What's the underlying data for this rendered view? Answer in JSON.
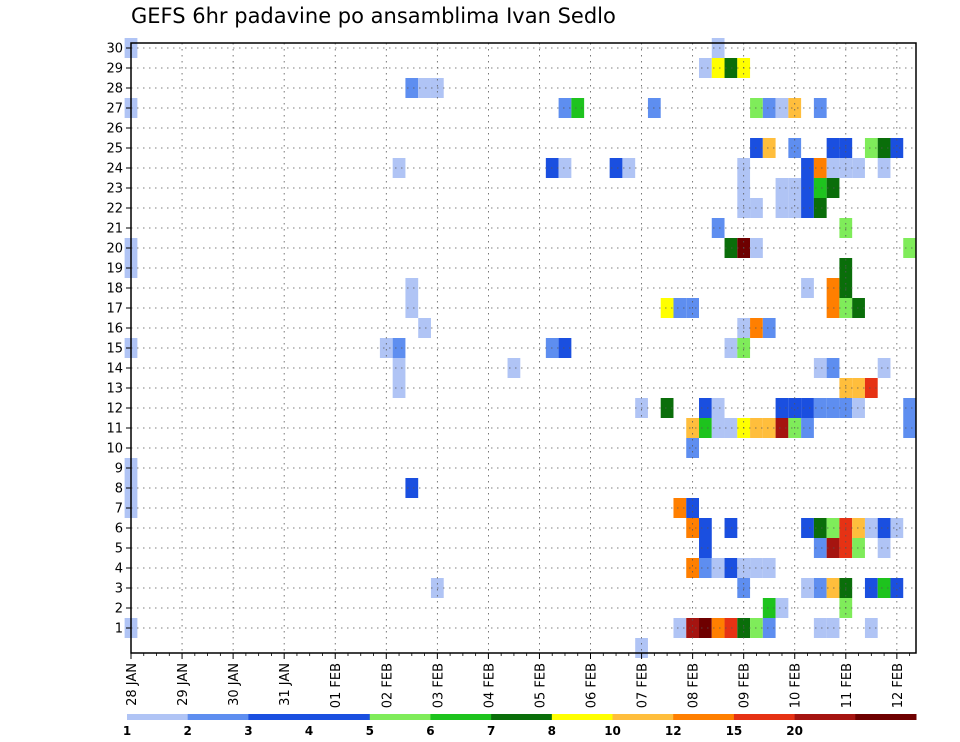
{
  "chart_data": {
    "type": "heatmap",
    "title": "GEFS 6hr padavine po ansamblima Ivan Sedlo",
    "xlabel": "",
    "ylabel": "",
    "x_tick_labels": [
      "28 JAN",
      "29 JAN",
      "30 JAN",
      "31 JAN",
      "01 FEB",
      "02 FEB",
      "03 FEB",
      "04 FEB",
      "05 FEB",
      "06 FEB",
      "07 FEB",
      "08 FEB",
      "09 FEB",
      "10 FEB",
      "11 FEB",
      "12 FEB"
    ],
    "x_range_steps": [
      0,
      61
    ],
    "steps_per_day": 4,
    "y_tick_labels": [
      "1",
      "2",
      "3",
      "4",
      "5",
      "6",
      "7",
      "8",
      "9",
      "10",
      "11",
      "12",
      "13",
      "14",
      "15",
      "16",
      "17",
      "18",
      "19",
      "20",
      "21",
      "22",
      "23",
      "24",
      "25",
      "26",
      "27",
      "28",
      "29",
      "30"
    ],
    "y_range": [
      0,
      30
    ],
    "grid": true,
    "colorbar": {
      "position": "bottom",
      "tick_labels": [
        "1",
        "2",
        "3",
        "4",
        "5",
        "6",
        "7",
        "8",
        "10",
        "12",
        "15",
        "20"
      ],
      "colors": [
        "#b0c4f5",
        "#5e8ef0",
        "#1a4fe0",
        "#1a4fe0",
        "#7fec5a",
        "#1ec31e",
        "#0a6e0a",
        "#ffff00",
        "#ffbe3c",
        "#ff7f00",
        "#e63214",
        "#a51410",
        "#6e0000"
      ]
    },
    "cells_note_units": "x = 6-hour step index from 28 JAN 00Z, y = ensemble member, v = precipitation class index",
    "cells": [
      [
        0,
        30,
        1
      ],
      [
        46,
        30,
        1
      ],
      [
        45,
        29,
        1
      ],
      [
        46,
        29,
        8
      ],
      [
        47,
        29,
        7
      ],
      [
        48,
        29,
        8
      ],
      [
        22,
        28,
        2
      ],
      [
        23,
        28,
        1
      ],
      [
        24,
        28,
        1
      ],
      [
        0,
        27,
        1
      ],
      [
        34,
        27,
        2
      ],
      [
        35,
        27,
        6
      ],
      [
        41,
        27,
        2
      ],
      [
        49,
        27,
        5
      ],
      [
        50,
        27,
        2
      ],
      [
        51,
        27,
        1
      ],
      [
        52,
        27,
        9
      ],
      [
        54,
        27,
        2
      ],
      [
        49,
        25,
        3
      ],
      [
        50,
        25,
        9
      ],
      [
        52,
        25,
        2
      ],
      [
        55,
        25,
        3
      ],
      [
        56,
        25,
        3
      ],
      [
        58,
        25,
        5
      ],
      [
        59,
        25,
        7
      ],
      [
        60,
        25,
        3
      ],
      [
        21,
        24,
        1
      ],
      [
        33,
        24,
        3
      ],
      [
        34,
        24,
        1
      ],
      [
        38,
        24,
        3
      ],
      [
        39,
        24,
        1
      ],
      [
        48,
        24,
        1
      ],
      [
        53,
        24,
        3
      ],
      [
        54,
        24,
        10
      ],
      [
        55,
        24,
        1
      ],
      [
        56,
        24,
        1
      ],
      [
        57,
        24,
        1
      ],
      [
        59,
        24,
        1
      ],
      [
        48,
        23,
        1
      ],
      [
        51,
        23,
        1
      ],
      [
        52,
        23,
        1
      ],
      [
        53,
        23,
        3
      ],
      [
        54,
        23,
        6
      ],
      [
        55,
        23,
        7
      ],
      [
        48,
        22,
        1
      ],
      [
        49,
        22,
        1
      ],
      [
        51,
        22,
        1
      ],
      [
        52,
        22,
        1
      ],
      [
        53,
        22,
        3
      ],
      [
        54,
        22,
        7
      ],
      [
        46,
        21,
        2
      ],
      [
        56,
        21,
        5
      ],
      [
        0,
        20,
        1
      ],
      [
        47,
        20,
        7
      ],
      [
        48,
        20,
        13
      ],
      [
        49,
        20,
        1
      ],
      [
        61,
        20,
        5
      ],
      [
        0,
        19,
        1
      ],
      [
        56,
        19,
        7
      ],
      [
        53,
        18,
        1
      ],
      [
        55,
        18,
        10
      ],
      [
        56,
        18,
        7
      ],
      [
        22,
        18,
        1
      ],
      [
        42,
        17,
        8
      ],
      [
        43,
        17,
        2
      ],
      [
        44,
        17,
        2
      ],
      [
        55,
        17,
        10
      ],
      [
        56,
        17,
        5
      ],
      [
        57,
        17,
        7
      ],
      [
        22,
        17,
        1
      ],
      [
        23,
        16,
        1
      ],
      [
        48,
        16,
        1
      ],
      [
        49,
        16,
        10
      ],
      [
        50,
        16,
        2
      ],
      [
        0,
        15,
        1
      ],
      [
        20,
        15,
        1
      ],
      [
        21,
        15,
        2
      ],
      [
        33,
        15,
        2
      ],
      [
        34,
        15,
        3
      ],
      [
        47,
        15,
        1
      ],
      [
        48,
        15,
        5
      ],
      [
        21,
        14,
        1
      ],
      [
        30,
        14,
        1
      ],
      [
        54,
        14,
        1
      ],
      [
        55,
        14,
        2
      ],
      [
        59,
        14,
        1
      ],
      [
        21,
        13,
        1
      ],
      [
        56,
        13,
        9
      ],
      [
        57,
        13,
        9
      ],
      [
        58,
        13,
        11
      ],
      [
        40,
        12,
        1
      ],
      [
        42,
        12,
        7
      ],
      [
        45,
        12,
        3
      ],
      [
        46,
        12,
        1
      ],
      [
        51,
        12,
        3
      ],
      [
        52,
        12,
        3
      ],
      [
        53,
        12,
        3
      ],
      [
        54,
        12,
        2
      ],
      [
        55,
        12,
        2
      ],
      [
        56,
        12,
        2
      ],
      [
        57,
        12,
        1
      ],
      [
        61,
        12,
        2
      ],
      [
        44,
        11,
        9
      ],
      [
        45,
        11,
        6
      ],
      [
        46,
        11,
        1
      ],
      [
        47,
        11,
        1
      ],
      [
        48,
        11,
        8
      ],
      [
        49,
        11,
        9
      ],
      [
        50,
        11,
        9
      ],
      [
        51,
        11,
        12
      ],
      [
        52,
        11,
        5
      ],
      [
        53,
        11,
        2
      ],
      [
        61,
        11,
        2
      ],
      [
        44,
        10,
        2
      ],
      [
        0,
        9,
        1
      ],
      [
        0,
        8,
        1
      ],
      [
        22,
        8,
        3
      ],
      [
        0,
        7,
        1
      ],
      [
        43,
        7,
        10
      ],
      [
        44,
        7,
        3
      ],
      [
        44,
        6,
        10
      ],
      [
        45,
        6,
        3
      ],
      [
        47,
        6,
        3
      ],
      [
        53,
        6,
        3
      ],
      [
        54,
        6,
        7
      ],
      [
        55,
        6,
        5
      ],
      [
        56,
        6,
        11
      ],
      [
        57,
        6,
        9
      ],
      [
        58,
        6,
        1
      ],
      [
        59,
        6,
        3
      ],
      [
        60,
        6,
        1
      ],
      [
        45,
        5,
        3
      ],
      [
        54,
        5,
        2
      ],
      [
        55,
        5,
        12
      ],
      [
        56,
        5,
        11
      ],
      [
        57,
        5,
        5
      ],
      [
        59,
        5,
        1
      ],
      [
        44,
        4,
        10
      ],
      [
        45,
        4,
        2
      ],
      [
        46,
        4,
        1
      ],
      [
        47,
        4,
        3
      ],
      [
        48,
        4,
        1
      ],
      [
        49,
        4,
        1
      ],
      [
        50,
        4,
        1
      ],
      [
        24,
        3,
        1
      ],
      [
        48,
        3,
        2
      ],
      [
        53,
        3,
        1
      ],
      [
        54,
        3,
        2
      ],
      [
        55,
        3,
        9
      ],
      [
        56,
        3,
        7
      ],
      [
        58,
        3,
        3
      ],
      [
        59,
        3,
        6
      ],
      [
        60,
        3,
        3
      ],
      [
        50,
        2,
        6
      ],
      [
        51,
        2,
        1
      ],
      [
        56,
        2,
        5
      ],
      [
        0,
        1,
        1
      ],
      [
        43,
        1,
        1
      ],
      [
        44,
        1,
        12
      ],
      [
        45,
        1,
        13
      ],
      [
        46,
        1,
        10
      ],
      [
        47,
        1,
        11
      ],
      [
        48,
        1,
        7
      ],
      [
        49,
        1,
        5
      ],
      [
        50,
        1,
        2
      ],
      [
        54,
        1,
        1
      ],
      [
        55,
        1,
        1
      ],
      [
        58,
        1,
        1
      ],
      [
        40,
        0,
        1
      ]
    ]
  }
}
